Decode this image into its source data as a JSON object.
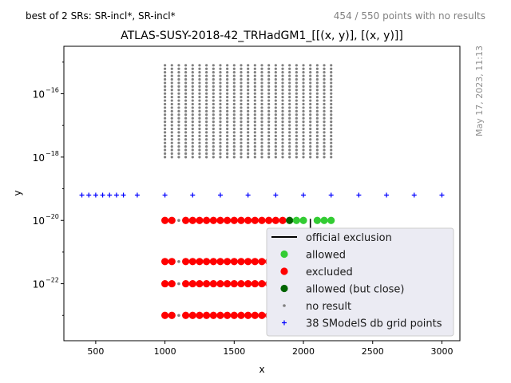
{
  "header": {
    "left_note": "best of 2 SRs: SR-incl*, SR-incl*",
    "right_note": "454 / 550 points with no results"
  },
  "side_note": "May 17, 2023, 11:13",
  "chart_data": {
    "type": "scatter",
    "title": "ATLAS-SUSY-2018-42_TRHadGM1_[[(x, y)], [(x, y)]]",
    "xlabel": "x",
    "ylabel": "y",
    "xlim": [
      270,
      3130
    ],
    "ylim_log10": [
      -23.8,
      -14.5
    ],
    "y_scale": "log",
    "x_ticks": [
      500,
      1000,
      1500,
      2000,
      2500,
      3000
    ],
    "y_ticks": [
      {
        "exp": -16,
        "label": "10^-16"
      },
      {
        "exp": -18,
        "label": "10^-18"
      },
      {
        "exp": -20,
        "label": "10^-20"
      },
      {
        "exp": -22,
        "label": "10^-22"
      }
    ],
    "legend_position": "bottom-right",
    "colors": {
      "allowed": "#33cc33",
      "excluded": "#ff0000",
      "allowed_close": "#006400",
      "no_result": "#808080",
      "grid_points": "#0000ff",
      "excluded_faded": "#f4b6bd",
      "allowed_faded": "#cfeccf",
      "official": "#000000"
    },
    "grid_block": {
      "x_from": 1000,
      "x_to": 2200,
      "x_step": 50,
      "y_exp_top": -15.1,
      "y_exp_bottom": -18.0,
      "rows": 27
    },
    "row_exponents": [
      -20.0,
      -21.3,
      -22.0,
      -23.0
    ],
    "scan_rows": [
      {
        "y_exp": -20.0,
        "red_x": [
          1000,
          1050,
          1150,
          1200,
          1250,
          1300,
          1350,
          1400,
          1450,
          1500,
          1550,
          1600,
          1650,
          1700,
          1750,
          1800,
          1850
        ],
        "dark_x": [
          1900
        ],
        "green_x": [
          1950,
          2000,
          2100,
          2150,
          2200
        ],
        "grey_x": [
          1100
        ],
        "faded": false
      },
      {
        "y_exp": -21.3,
        "red_x": [
          1000,
          1050,
          1150,
          1200,
          1250,
          1300,
          1350,
          1400,
          1450,
          1500,
          1550,
          1600,
          1650,
          1700,
          1750
        ],
        "dark_x": [],
        "green_x": [],
        "grey_x": [
          1100
        ],
        "faded": true
      },
      {
        "y_exp": -22.0,
        "red_x": [
          1000,
          1050,
          1150,
          1200,
          1250,
          1300,
          1350,
          1400,
          1450,
          1500,
          1550,
          1600,
          1650,
          1700,
          1750
        ],
        "dark_x": [],
        "green_x": [],
        "grey_x": [
          1100
        ],
        "faded": true
      },
      {
        "y_exp": -23.0,
        "red_x": [
          1000,
          1050,
          1150,
          1200,
          1250,
          1300,
          1350,
          1400,
          1450,
          1500,
          1550,
          1600,
          1650,
          1700,
          1750
        ],
        "dark_x": [],
        "green_x": [],
        "grey_x": [
          1100
        ],
        "faded": true
      }
    ],
    "db_grid_points": {
      "y_exp": -19.2,
      "x": [
        400,
        450,
        500,
        550,
        600,
        650,
        700,
        800,
        1000,
        1200,
        1400,
        1600,
        1800,
        2000,
        2200,
        2400,
        2600,
        2800,
        3000
      ]
    },
    "official_exclusion": {
      "x": 2050,
      "y_exp_from": -20.3,
      "y_exp_to": -19.95
    },
    "legend": [
      {
        "key": "official",
        "label": "official exclusion",
        "marker": "line"
      },
      {
        "key": "allowed",
        "label": "allowed",
        "marker": "dot"
      },
      {
        "key": "excluded",
        "label": "excluded",
        "marker": "dot"
      },
      {
        "key": "allowed_close",
        "label": "allowed (but close)",
        "marker": "dot"
      },
      {
        "key": "no_result",
        "label": "no result",
        "marker": "small"
      },
      {
        "key": "grid_points",
        "label": "38 SModelS db grid points",
        "marker": "plus"
      }
    ]
  }
}
